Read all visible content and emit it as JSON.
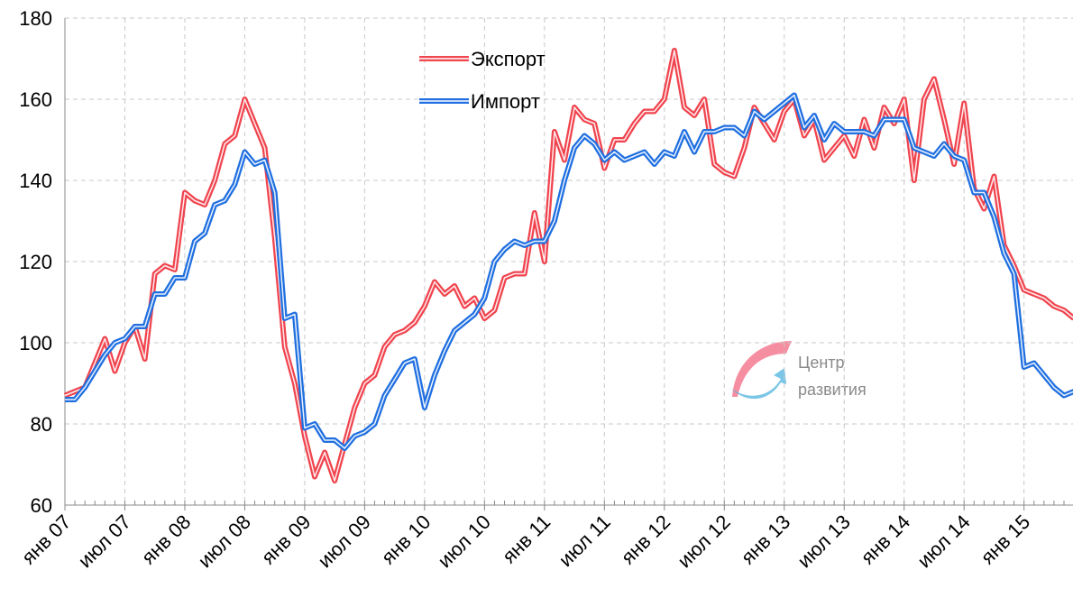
{
  "chart_data": {
    "type": "line",
    "categories": [
      "янв 07",
      null,
      null,
      null,
      null,
      null,
      "июл 07",
      null,
      null,
      null,
      null,
      null,
      "янв 08",
      null,
      null,
      null,
      null,
      null,
      "июл 08",
      null,
      null,
      null,
      null,
      null,
      "янв 09",
      null,
      null,
      null,
      null,
      null,
      "июл 09",
      null,
      null,
      null,
      null,
      null,
      "янв 10",
      null,
      null,
      null,
      null,
      null,
      "июл 10",
      null,
      null,
      null,
      null,
      null,
      "янв 11",
      null,
      null,
      null,
      null,
      null,
      "июл 11",
      null,
      null,
      null,
      null,
      null,
      "янв 12",
      null,
      null,
      null,
      null,
      null,
      "июл 12",
      null,
      null,
      null,
      null,
      null,
      "янв 13",
      null,
      null,
      null,
      null,
      null,
      "июл 13",
      null,
      null,
      null,
      null,
      null,
      "янв 14",
      null,
      null,
      null,
      null,
      null,
      "июл 14",
      null,
      null,
      null,
      null,
      null,
      "янв 15",
      null,
      null,
      null,
      null,
      null
    ],
    "series": [
      {
        "name": "Экспорт",
        "color": "#f0444e",
        "values": [
          87,
          88,
          89,
          95,
          101,
          93,
          100,
          104,
          96,
          117,
          119,
          118,
          137,
          135,
          134,
          140,
          149,
          151,
          160,
          154,
          148,
          126,
          99,
          90,
          77,
          67,
          73,
          66,
          75,
          84,
          90,
          92,
          99,
          102,
          103,
          105,
          109,
          115,
          112,
          114,
          109,
          111,
          106,
          108,
          116,
          117,
          117,
          132,
          120,
          152,
          145,
          158,
          155,
          154,
          143,
          150,
          150,
          154,
          157,
          157,
          160,
          172,
          158,
          156,
          160,
          144,
          142,
          141,
          148,
          158,
          154,
          150,
          157,
          160,
          151,
          155,
          145,
          148,
          151,
          146,
          155,
          148,
          158,
          154,
          160,
          140,
          160,
          165,
          155,
          144,
          159,
          138,
          133,
          141,
          124,
          119,
          113,
          112,
          111,
          109,
          108,
          106
        ]
      },
      {
        "name": "Импорт",
        "color": "#1f6fe0",
        "values": [
          86,
          86,
          89,
          93,
          97,
          100,
          101,
          104,
          104,
          112,
          112,
          116,
          116,
          125,
          127,
          134,
          135,
          139,
          147,
          144,
          145,
          137,
          106,
          107,
          79,
          80,
          76,
          76,
          74,
          77,
          78,
          80,
          87,
          91,
          95,
          96,
          84,
          92,
          98,
          103,
          105,
          107,
          111,
          120,
          123,
          125,
          124,
          125,
          125,
          130,
          140,
          148,
          151,
          149,
          145,
          147,
          145,
          146,
          147,
          144,
          147,
          146,
          152,
          147,
          152,
          152,
          153,
          153,
          151,
          157,
          155,
          157,
          159,
          161,
          153,
          156,
          150,
          154,
          152,
          152,
          152,
          151,
          155,
          155,
          155,
          148,
          147,
          146,
          149,
          146,
          145,
          137,
          137,
          131,
          122,
          117,
          94,
          95,
          92,
          89,
          87,
          88
        ]
      }
    ],
    "ylim": [
      60,
      180
    ],
    "yticks": [
      60,
      80,
      100,
      120,
      140,
      160,
      180
    ],
    "grid": true,
    "legend": "top-center",
    "watermark": [
      "Центр",
      "развития"
    ]
  }
}
